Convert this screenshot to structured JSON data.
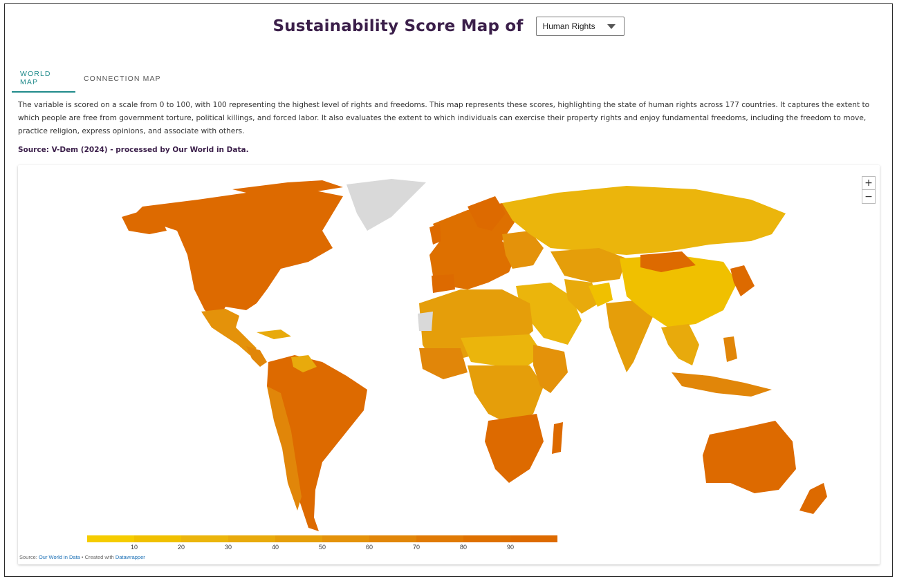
{
  "header": {
    "title": "Sustainability Score Map of",
    "selected_variable": "Human Rights"
  },
  "tabs": [
    {
      "label": "WORLD MAP",
      "active": true
    },
    {
      "label": "CONNECTION MAP",
      "active": false
    }
  ],
  "description": "The variable is scored on a scale from 0 to 100, with 100 representing the highest level of rights and freedoms. This map represents these scores, highlighting the state of human rights across 177 countries. It captures the extent to which people are free from government torture, political killings, and forced labor. It also evaluates the extent to which individuals can exercise their property rights and enjoy fundamental freedoms, including the freedom to move, practice religion, express opinions, and associate with others.",
  "source_line": "Source: V-Dem (2024) - processed by Our World in Data.",
  "map": {
    "zoom_in": "+",
    "zoom_out": "−",
    "no_data_color": "#d9d9d9",
    "legend": {
      "colors": [
        "#f5cc00",
        "#f0c000",
        "#ebb50c",
        "#e8aa0c",
        "#e59e0a",
        "#e4920a",
        "#e18609",
        "#e07a05",
        "#de7000",
        "#dd6a00"
      ],
      "ticks": [
        "10",
        "20",
        "30",
        "40",
        "50",
        "60",
        "70",
        "80",
        "90"
      ]
    },
    "credit_prefix": "Source: ",
    "credit_source_link": "Our World in Data",
    "credit_middle": " • Created with ",
    "credit_tool_link": "Datawrapper"
  }
}
